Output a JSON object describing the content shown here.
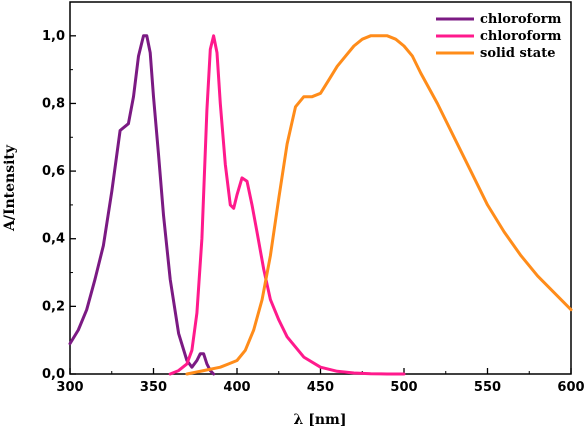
{
  "chart_data": {
    "type": "line",
    "xlabel": "λ [nm]",
    "ylabel": "A/Intensity",
    "xlim": [
      300,
      600
    ],
    "ylim": [
      0.0,
      1.1
    ],
    "xticks": [
      300,
      350,
      400,
      450,
      500,
      550,
      600
    ],
    "yticks": [
      0.0,
      0.2,
      0.4,
      0.6,
      0.8,
      1.0
    ],
    "xtick_labels": [
      "300",
      "350",
      "400",
      "450",
      "500",
      "550",
      "600"
    ],
    "ytick_labels": [
      "0,0",
      "0,2",
      "0,4",
      "0,6",
      "0,8",
      "1,0"
    ],
    "grid": false,
    "legend_position": "top-right",
    "series": [
      {
        "name": "chloroform",
        "color": "#7b1a83",
        "x": [
          300,
          305,
          310,
          315,
          320,
          325,
          330,
          335,
          338,
          341,
          344,
          346,
          348,
          350,
          353,
          356,
          360,
          365,
          370,
          373,
          376,
          378,
          380,
          382,
          384,
          386
        ],
        "y": [
          0.09,
          0.13,
          0.19,
          0.28,
          0.38,
          0.54,
          0.72,
          0.74,
          0.82,
          0.94,
          1.0,
          1.0,
          0.95,
          0.82,
          0.65,
          0.47,
          0.28,
          0.12,
          0.04,
          0.02,
          0.04,
          0.06,
          0.06,
          0.03,
          0.01,
          0.0
        ]
      },
      {
        "name": "chloroform",
        "color": "#ff1a8c",
        "x": [
          360,
          365,
          370,
          373,
          376,
          379,
          382,
          384,
          386,
          388,
          390,
          393,
          396,
          398,
          400,
          403,
          406,
          409,
          412,
          416,
          420,
          425,
          430,
          440,
          450,
          460,
          470,
          480,
          490,
          500
        ],
        "y": [
          0.0,
          0.01,
          0.03,
          0.07,
          0.18,
          0.4,
          0.78,
          0.96,
          1.0,
          0.95,
          0.8,
          0.62,
          0.5,
          0.49,
          0.53,
          0.58,
          0.57,
          0.5,
          0.42,
          0.31,
          0.22,
          0.16,
          0.11,
          0.05,
          0.02,
          0.008,
          0.003,
          0.001,
          0.0,
          0.0
        ]
      },
      {
        "name": "solid state",
        "color": "#ff8c1a",
        "x": [
          370,
          380,
          390,
          395,
          400,
          405,
          410,
          415,
          420,
          425,
          430,
          435,
          440,
          445,
          450,
          455,
          460,
          465,
          470,
          475,
          480,
          485,
          490,
          495,
          500,
          505,
          510,
          520,
          530,
          540,
          550,
          560,
          570,
          580,
          590,
          600
        ],
        "y": [
          0.0,
          0.01,
          0.02,
          0.03,
          0.04,
          0.07,
          0.13,
          0.22,
          0.35,
          0.52,
          0.68,
          0.79,
          0.82,
          0.82,
          0.83,
          0.87,
          0.91,
          0.94,
          0.97,
          0.99,
          1.0,
          1.0,
          1.0,
          0.99,
          0.97,
          0.94,
          0.89,
          0.8,
          0.7,
          0.6,
          0.5,
          0.42,
          0.35,
          0.29,
          0.24,
          0.19
        ]
      }
    ]
  }
}
